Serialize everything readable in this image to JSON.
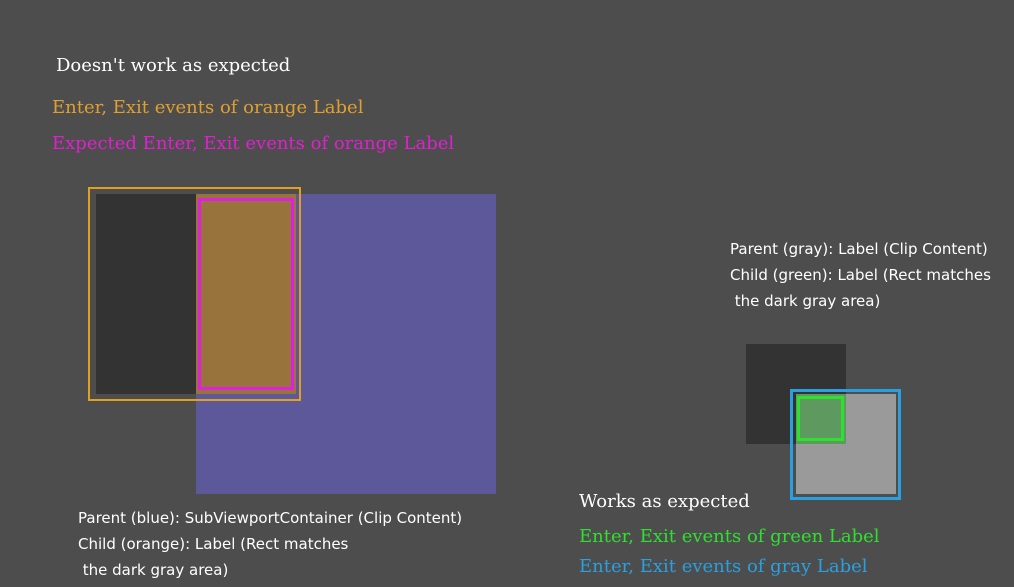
{
  "left": {
    "title": "Doesn't work as expected",
    "legend_actual": "Enter, Exit events of orange Label",
    "legend_expected": "Expected Enter, Exit events of orange Label",
    "caption_lines": [
      "Parent (blue): SubViewportContainer (Clip Content)",
      "Child (orange): Label (Rect matches",
      " the dark gray area)"
    ]
  },
  "right": {
    "title": "Works as expected",
    "legend_green": "Enter, Exit events of green Label",
    "legend_gray": "Enter, Exit events of gray Label",
    "caption_lines": [
      "Parent (gray): Label (Clip Content)",
      "Child (green): Label (Rect matches",
      " the dark gray area)"
    ]
  },
  "colors": {
    "background": "#4d4d4d",
    "dark_gray_area": "#333333",
    "blue_parent": "#5d5899",
    "orange_child": "#98743c",
    "orange_outline": "#e0a020",
    "magenta_outline": "#e020e0",
    "gray_parent": "#9a9a9a",
    "green_child": "#5e9960",
    "green_outline": "#30e030",
    "blue_outline": "#2aa0e0",
    "title_text": "#ffffff",
    "legend_orange_text": "#e0a030",
    "legend_magenta_text": "#e020d0",
    "legend_green_text": "#30e030",
    "legend_blue_text": "#2aa0e0"
  }
}
